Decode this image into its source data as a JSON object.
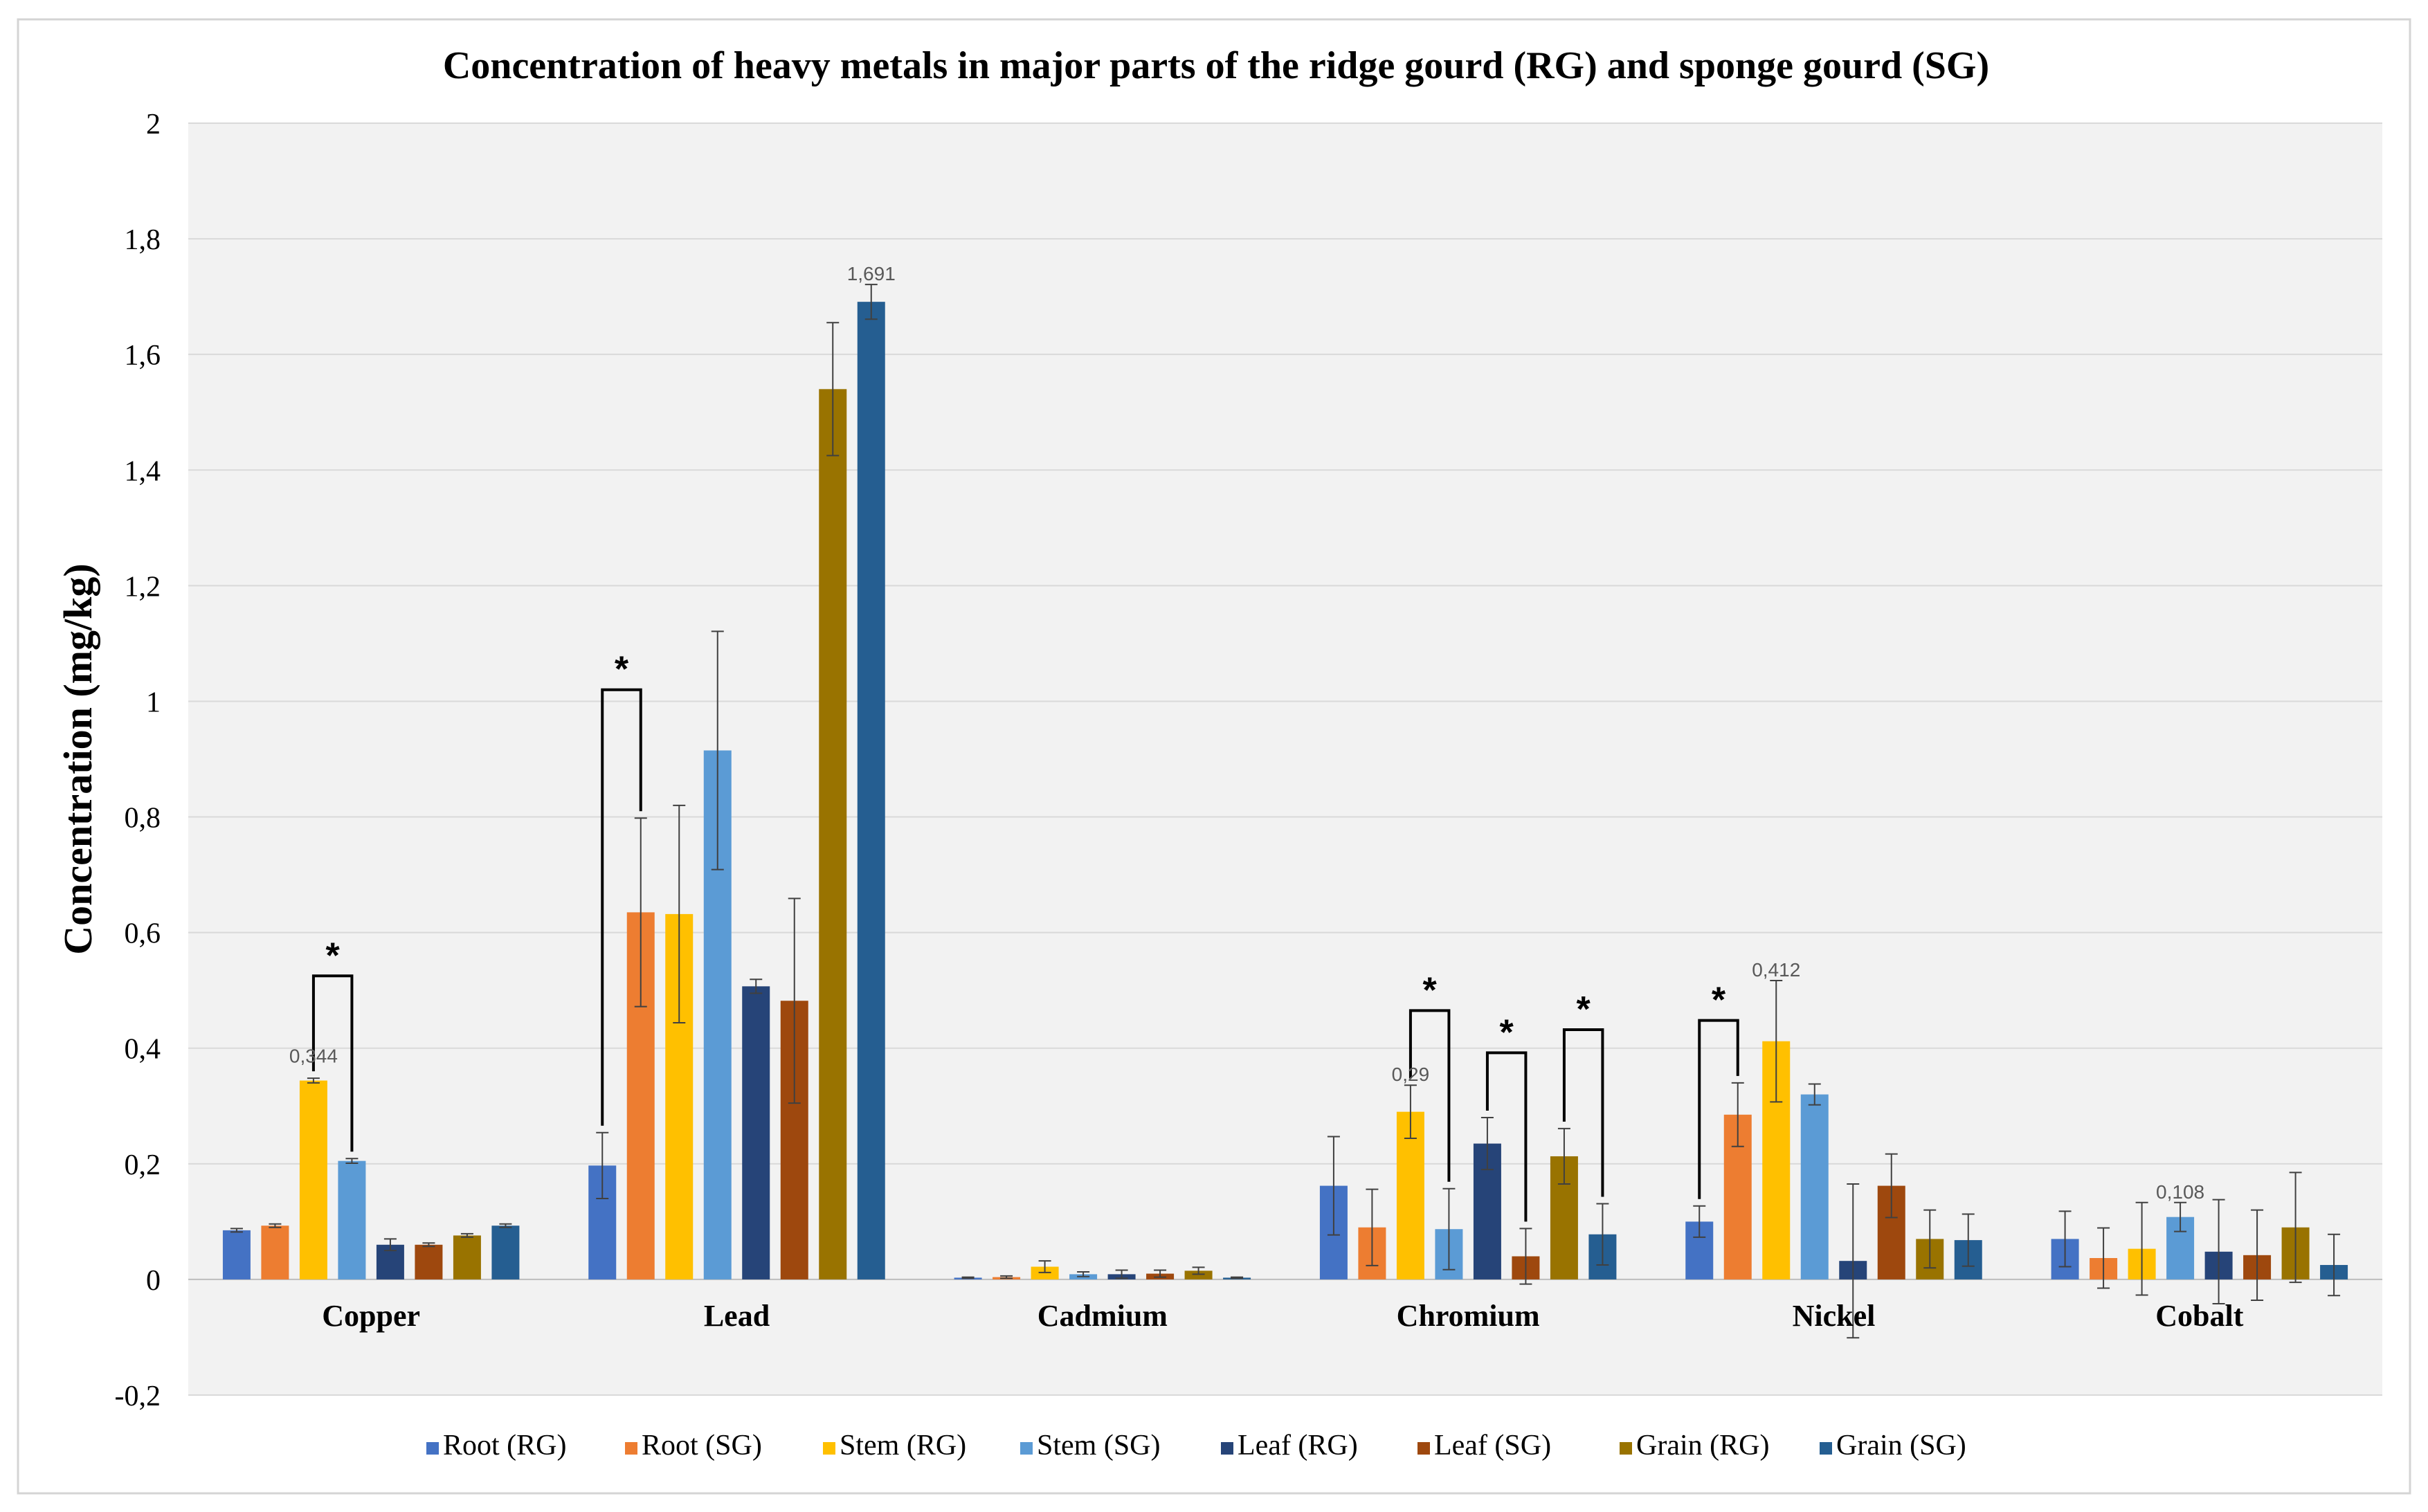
{
  "chart_data": {
    "type": "bar",
    "title": "Concentration of heavy metals in major parts of the ridge gourd (RG) and sponge gourd (SG)",
    "ylabel": "Concentration (mg/kg)",
    "xlabel": "",
    "ylim": [
      -0.2,
      2
    ],
    "yticks": [
      -0.2,
      0,
      0.2,
      0.4,
      0.6,
      0.8,
      1,
      1.2,
      1.4,
      1.6,
      1.8,
      2
    ],
    "ytick_labels": [
      "-0,2",
      "0",
      "0,2",
      "0,4",
      "0,6",
      "0,8",
      "1",
      "1,2",
      "1,4",
      "1,6",
      "1,8",
      "2"
    ],
    "grid": true,
    "legend_position": "bottom",
    "categories": [
      "Copper",
      "Lead",
      "Cadmium",
      "Chromium",
      "Nickel",
      "Cobalt"
    ],
    "series": [
      {
        "name": "Root (RG)",
        "color": "#4472C4",
        "values": [
          0.085,
          0.197,
          0.003,
          0.162,
          0.1,
          0.07
        ],
        "errors": [
          0.003,
          0.057,
          0.001,
          0.085,
          0.027,
          0.048
        ]
      },
      {
        "name": "Root (SG)",
        "color": "#ED7D31",
        "values": [
          0.093,
          0.635,
          0.004,
          0.09,
          0.285,
          0.037
        ],
        "errors": [
          0.003,
          0.163,
          0.002,
          0.066,
          0.055,
          0.052
        ]
      },
      {
        "name": "Stem (RG)",
        "color": "#FFC000",
        "values": [
          0.344,
          0.632,
          0.022,
          0.29,
          0.412,
          0.053
        ],
        "errors": [
          0.004,
          0.188,
          0.01,
          0.046,
          0.105,
          0.08
        ]
      },
      {
        "name": "Stem (SG)",
        "color": "#5B9BD5",
        "values": [
          0.205,
          0.915,
          0.009,
          0.087,
          0.32,
          0.108
        ],
        "errors": [
          0.004,
          0.206,
          0.004,
          0.07,
          0.018,
          0.025
        ]
      },
      {
        "name": "Leaf (RG)",
        "color": "#264478",
        "values": [
          0.06,
          0.507,
          0.009,
          0.235,
          0.032,
          0.048
        ],
        "errors": [
          0.01,
          0.012,
          0.007,
          0.045,
          0.133,
          0.09
        ]
      },
      {
        "name": "Leaf (SG)",
        "color": "#9E480E",
        "values": [
          0.06,
          0.482,
          0.01,
          0.04,
          0.162,
          0.042
        ],
        "errors": [
          0.003,
          0.177,
          0.006,
          0.048,
          0.055,
          0.078
        ]
      },
      {
        "name": "Grain (RG)",
        "color": "#997300",
        "values": [
          0.076,
          1.54,
          0.015,
          0.213,
          0.07,
          0.09
        ],
        "errors": [
          0.003,
          0.115,
          0.006,
          0.048,
          0.05,
          0.095
        ]
      },
      {
        "name": "Grain (SG)",
        "color": "#255E91",
        "values": [
          0.093,
          1.691,
          0.003,
          0.078,
          0.068,
          0.025
        ],
        "errors": [
          0.003,
          0.03,
          0.001,
          0.053,
          0.045,
          0.053
        ]
      }
    ],
    "data_labels": [
      {
        "category": "Copper",
        "series": "Stem (RG)",
        "text": "0,344"
      },
      {
        "category": "Lead",
        "series": "Grain (SG)",
        "text": "1,691"
      },
      {
        "category": "Chromium",
        "series": "Stem (RG)",
        "text": "0,29"
      },
      {
        "category": "Nickel",
        "series": "Stem (RG)",
        "text": "0,412"
      },
      {
        "category": "Cobalt",
        "series": "Stem (SG)",
        "text": "0,108"
      }
    ],
    "significance": [
      {
        "category": "Copper",
        "from": "Stem (RG)",
        "to": "Stem (SG)",
        "label": "*",
        "level": 0.525
      },
      {
        "category": "Lead",
        "from": "Root (RG)",
        "to": "Root (SG)",
        "label": "*",
        "level": 1.02
      },
      {
        "category": "Chromium",
        "from": "Stem (RG)",
        "to": "Stem (SG)",
        "label": "*",
        "level": 0.465
      },
      {
        "category": "Chromium",
        "from": "Leaf (RG)",
        "to": "Leaf (SG)",
        "label": "*",
        "level": 0.392
      },
      {
        "category": "Chromium",
        "from": "Grain (RG)",
        "to": "Grain (SG)",
        "label": "*",
        "level": 0.432
      },
      {
        "category": "Nickel",
        "from": "Root (RG)",
        "to": "Root (SG)",
        "label": "*",
        "level": 0.448
      }
    ]
  }
}
